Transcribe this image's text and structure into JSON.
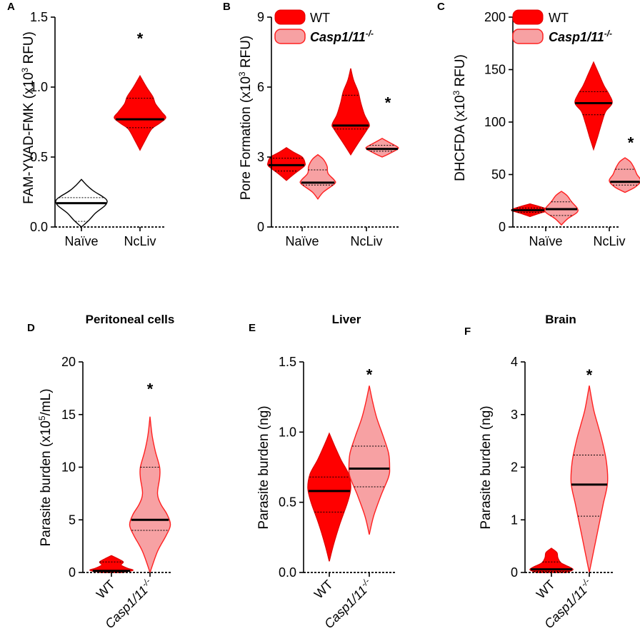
{
  "colors": {
    "wt_fill": "#ff0000",
    "wt_stroke": "#e00000",
    "ko_fill": "#f7a1a3",
    "ko_stroke": "#ff2020",
    "naive_fill": "#ffffff",
    "naive_stroke": "#000000",
    "axis": "#000000"
  },
  "legend": {
    "wt": "WT",
    "ko_base": "Casp1/11",
    "ko_sup": "-/-"
  },
  "chart_data": [
    {
      "id": "A",
      "type": "violin",
      "panel_label": "A",
      "title": "",
      "ylabel": {
        "pre": "FAM-YVAD-FMK (x10",
        "sup": "3",
        "post": " RFU)"
      },
      "ylim": [
        0,
        1.5
      ],
      "yticks": [
        0,
        0.5,
        1.0,
        1.5
      ],
      "ytick_labels": [
        "0.0",
        "0.5",
        "1.0",
        "1.5"
      ],
      "categories": [
        "Naïve",
        "NcLiv"
      ],
      "category_label_style": "flat",
      "legend": false,
      "violins": [
        {
          "name": "A-naive",
          "category": "Naïve",
          "group": "naive",
          "profile": [
            [
              0.0,
              0.0
            ],
            [
              0.05,
              0.3
            ],
            [
              0.1,
              0.55
            ],
            [
              0.15,
              0.9
            ],
            [
              0.18,
              1.0
            ],
            [
              0.2,
              0.95
            ],
            [
              0.22,
              0.8
            ],
            [
              0.26,
              0.45
            ],
            [
              0.3,
              0.2
            ],
            [
              0.34,
              0.0
            ]
          ],
          "median": 0.17,
          "quartiles": [
            0.04,
            0.21
          ]
        },
        {
          "name": "A-ncliv",
          "category": "NcLiv",
          "group": "wt",
          "profile": [
            [
              0.55,
              0.0
            ],
            [
              0.62,
              0.2
            ],
            [
              0.7,
              0.45
            ],
            [
              0.74,
              0.75
            ],
            [
              0.78,
              1.0
            ],
            [
              0.82,
              0.85
            ],
            [
              0.88,
              0.6
            ],
            [
              0.93,
              0.5
            ],
            [
              1.0,
              0.25
            ],
            [
              1.08,
              0.0
            ]
          ],
          "median": 0.77,
          "quartiles": [
            0.71,
            0.92
          ]
        }
      ],
      "annotations": [
        {
          "text": "*",
          "category": "NcLiv",
          "offset": 0,
          "y": 1.36
        }
      ]
    },
    {
      "id": "B",
      "type": "violin",
      "panel_label": "B",
      "title": "",
      "ylabel": {
        "pre": "Pore Formation (x10",
        "sup": "3",
        "post": " RFU)"
      },
      "ylim": [
        0,
        9
      ],
      "yticks": [
        0,
        3,
        6,
        9
      ],
      "ytick_labels": [
        "0",
        "3",
        "6",
        "9"
      ],
      "categories": [
        "Naïve",
        "NcLiv"
      ],
      "category_label_style": "flat",
      "legend": true,
      "violins": [
        {
          "name": "B-naive-wt",
          "category": "Naïve",
          "group": "wt",
          "offset": -0.22,
          "profile": [
            [
              2.0,
              0.0
            ],
            [
              2.3,
              0.45
            ],
            [
              2.6,
              0.95
            ],
            [
              2.75,
              1.0
            ],
            [
              3.0,
              0.85
            ],
            [
              3.2,
              0.4
            ],
            [
              3.4,
              0.0
            ]
          ],
          "median": 2.65,
          "quartiles": [
            2.4,
            2.95
          ]
        },
        {
          "name": "B-naive-ko",
          "category": "Naïve",
          "group": "ko",
          "offset": 0.22,
          "profile": [
            [
              1.2,
              0.0
            ],
            [
              1.5,
              0.3
            ],
            [
              1.85,
              0.9
            ],
            [
              2.0,
              0.9
            ],
            [
              2.3,
              0.55
            ],
            [
              2.6,
              0.5
            ],
            [
              2.9,
              0.3
            ],
            [
              3.1,
              0.0
            ]
          ],
          "median": 1.9,
          "quartiles": [
            1.8,
            2.45
          ]
        },
        {
          "name": "B-ncliv-wt",
          "category": "NcLiv",
          "group": "wt",
          "offset": -0.22,
          "profile": [
            [
              3.1,
              0.0
            ],
            [
              3.6,
              0.4
            ],
            [
              4.2,
              0.9
            ],
            [
              4.4,
              1.0
            ],
            [
              4.8,
              0.75
            ],
            [
              5.3,
              0.55
            ],
            [
              5.8,
              0.4
            ],
            [
              6.3,
              0.15
            ],
            [
              6.8,
              0.0
            ]
          ],
          "median": 4.35,
          "quartiles": [
            4.2,
            5.65
          ]
        },
        {
          "name": "B-ncliv-ko",
          "category": "NcLiv",
          "group": "ko",
          "offset": 0.22,
          "profile": [
            [
              3.0,
              0.0
            ],
            [
              3.15,
              0.4
            ],
            [
              3.35,
              0.85
            ],
            [
              3.45,
              0.8
            ],
            [
              3.6,
              0.45
            ],
            [
              3.8,
              0.0
            ]
          ],
          "median": 3.35,
          "quartiles": [
            3.25,
            3.5
          ]
        }
      ],
      "annotations": [
        {
          "text": "*",
          "category": "NcLiv",
          "offset": 0.3,
          "y": 5.4
        }
      ]
    },
    {
      "id": "C",
      "type": "violin",
      "panel_label": "C",
      "title": "",
      "ylabel": {
        "pre": "DHCFDA (x10",
        "sup": "3",
        "post": " RFU)"
      },
      "ylim": [
        0,
        200
      ],
      "yticks": [
        0,
        50,
        100,
        150,
        200
      ],
      "ytick_labels": [
        "0",
        "50",
        "100",
        "150",
        "200"
      ],
      "categories": [
        "Naïve",
        "NcLiv"
      ],
      "category_label_style": "flat",
      "legend": true,
      "violins": [
        {
          "name": "C-naive-wt",
          "category": "Naïve",
          "group": "wt",
          "offset": -0.22,
          "profile": [
            [
              10,
              0.0
            ],
            [
              13,
              0.5
            ],
            [
              16,
              1.0
            ],
            [
              19,
              0.6
            ],
            [
              22,
              0.0
            ]
          ],
          "median": 16,
          "quartiles": [
            14,
            18
          ]
        },
        {
          "name": "C-naive-ko",
          "category": "Naïve",
          "group": "ko",
          "offset": 0.22,
          "profile": [
            [
              2,
              0.0
            ],
            [
              8,
              0.35
            ],
            [
              14,
              0.85
            ],
            [
              18,
              0.85
            ],
            [
              24,
              0.55
            ],
            [
              30,
              0.3
            ],
            [
              34,
              0.0
            ]
          ],
          "median": 17,
          "quartiles": [
            11,
            24
          ]
        },
        {
          "name": "C-ncliv-wt",
          "category": "NcLiv",
          "group": "wt",
          "offset": -0.22,
          "profile": [
            [
              74,
              0.0
            ],
            [
              85,
              0.2
            ],
            [
              100,
              0.45
            ],
            [
              110,
              0.65
            ],
            [
              118,
              1.0
            ],
            [
              126,
              0.85
            ],
            [
              135,
              0.55
            ],
            [
              145,
              0.3
            ],
            [
              157,
              0.0
            ]
          ],
          "median": 118,
          "quartiles": [
            107,
            129
          ]
        },
        {
          "name": "C-ncliv-ko",
          "category": "NcLiv",
          "group": "ko",
          "offset": 0.22,
          "profile": [
            [
              33,
              0.0
            ],
            [
              38,
              0.55
            ],
            [
              44,
              0.85
            ],
            [
              50,
              0.65
            ],
            [
              56,
              0.5
            ],
            [
              62,
              0.3
            ],
            [
              66,
              0.0
            ]
          ],
          "median": 43,
          "quartiles": [
            40,
            55
          ]
        }
      ],
      "annotations": [
        {
          "text": "*",
          "category": "NcLiv",
          "offset": 0.3,
          "y": 82
        }
      ]
    },
    {
      "id": "D",
      "type": "violin",
      "panel_label": "D",
      "title": "Peritoneal cells",
      "ylabel": {
        "pre": "Parasite burden (x10",
        "sup": "5",
        "post": "/mL)"
      },
      "ylim": [
        0,
        20
      ],
      "yticks": [
        0,
        5,
        10,
        15,
        20
      ],
      "ytick_labels": [
        "0",
        "5",
        "10",
        "15",
        "20"
      ],
      "categories": [
        "WT",
        "Casp1/11-/-"
      ],
      "category_label_style": "rotated",
      "legend": false,
      "violins": [
        {
          "name": "D-wt",
          "category": "WT",
          "group": "wt",
          "profile": [
            [
              0.0,
              0.5
            ],
            [
              0.2,
              1.0
            ],
            [
              0.4,
              0.75
            ],
            [
              0.7,
              0.45
            ],
            [
              1.0,
              0.55
            ],
            [
              1.3,
              0.3
            ],
            [
              1.6,
              0.0
            ]
          ],
          "median": 0.15,
          "quartiles": [
            0.05,
            1.0
          ]
        },
        {
          "name": "D-ko",
          "category": "Casp1/11-/-",
          "group": "ko",
          "profile": [
            [
              0.0,
              0.0
            ],
            [
              2.0,
              0.35
            ],
            [
              3.5,
              0.75
            ],
            [
              4.5,
              0.95
            ],
            [
              5.5,
              0.8
            ],
            [
              6.5,
              0.5
            ],
            [
              7.5,
              0.35
            ],
            [
              9.0,
              0.45
            ],
            [
              10.0,
              0.45
            ],
            [
              11.5,
              0.25
            ],
            [
              13.0,
              0.1
            ],
            [
              14.8,
              0.0
            ]
          ],
          "median": 5.0,
          "quartiles": [
            4.0,
            10.0
          ]
        }
      ],
      "annotations": [
        {
          "text": "*",
          "category": "Casp1/11-/-",
          "offset": 0,
          "y": 17.6
        }
      ]
    },
    {
      "id": "E",
      "type": "violin",
      "panel_label": "E",
      "title": "Liver",
      "ylabel": {
        "pre": "Parasite burden (ng)",
        "sup": "",
        "post": ""
      },
      "ylim": [
        0,
        1.5
      ],
      "yticks": [
        0,
        0.5,
        1.0,
        1.5
      ],
      "ytick_labels": [
        "0.0",
        "0.5",
        "1.0",
        "1.5"
      ],
      "categories": [
        "WT",
        "Casp1/11-/-"
      ],
      "category_label_style": "rotated",
      "legend": false,
      "violins": [
        {
          "name": "E-wt",
          "category": "WT",
          "group": "wt",
          "profile": [
            [
              0.08,
              0.0
            ],
            [
              0.2,
              0.2
            ],
            [
              0.35,
              0.5
            ],
            [
              0.5,
              0.85
            ],
            [
              0.6,
              1.0
            ],
            [
              0.7,
              0.9
            ],
            [
              0.8,
              0.55
            ],
            [
              0.9,
              0.25
            ],
            [
              0.99,
              0.0
            ]
          ],
          "median": 0.58,
          "quartiles": [
            0.43,
            0.68
          ]
        },
        {
          "name": "E-ko",
          "category": "Casp1/11-/-",
          "group": "ko",
          "profile": [
            [
              0.27,
              0.0
            ],
            [
              0.4,
              0.2
            ],
            [
              0.55,
              0.55
            ],
            [
              0.68,
              0.9
            ],
            [
              0.75,
              0.95
            ],
            [
              0.85,
              0.9
            ],
            [
              0.97,
              0.65
            ],
            [
              1.1,
              0.35
            ],
            [
              1.22,
              0.15
            ],
            [
              1.33,
              0.0
            ]
          ],
          "median": 0.74,
          "quartiles": [
            0.61,
            0.9
          ]
        }
      ],
      "annotations": [
        {
          "text": "*",
          "category": "Casp1/11-/-",
          "offset": 0,
          "y": 1.42
        }
      ]
    },
    {
      "id": "F",
      "type": "violin",
      "panel_label": "F",
      "title": "Brain",
      "ylabel": {
        "pre": "Parasite burden (ng)",
        "sup": "",
        "post": ""
      },
      "ylim": [
        0,
        4
      ],
      "yticks": [
        0,
        1,
        2,
        3,
        4
      ],
      "ytick_labels": [
        "0",
        "1",
        "2",
        "3",
        "4"
      ],
      "categories": [
        "WT",
        "Casp1/11-/-"
      ],
      "category_label_style": "rotated",
      "legend": false,
      "violins": [
        {
          "name": "F-wt",
          "category": "WT",
          "group": "wt",
          "profile": [
            [
              0.0,
              0.7
            ],
            [
              0.05,
              1.0
            ],
            [
              0.1,
              0.85
            ],
            [
              0.18,
              0.45
            ],
            [
              0.28,
              0.3
            ],
            [
              0.38,
              0.25
            ],
            [
              0.46,
              0.0
            ]
          ],
          "median": 0.06,
          "quartiles": [
            0.02,
            0.2
          ]
        },
        {
          "name": "F-ko",
          "category": "Casp1/11-/-",
          "group": "ko",
          "profile": [
            [
              0.0,
              0.0
            ],
            [
              0.4,
              0.2
            ],
            [
              0.9,
              0.45
            ],
            [
              1.3,
              0.65
            ],
            [
              1.7,
              0.85
            ],
            [
              2.1,
              0.8
            ],
            [
              2.5,
              0.6
            ],
            [
              2.8,
              0.4
            ],
            [
              3.1,
              0.2
            ],
            [
              3.55,
              0.0
            ]
          ],
          "median": 1.67,
          "quartiles": [
            1.07,
            2.23
          ]
        }
      ],
      "annotations": [
        {
          "text": "*",
          "category": "Casp1/11-/-",
          "offset": 0,
          "y": 3.78
        }
      ]
    }
  ]
}
